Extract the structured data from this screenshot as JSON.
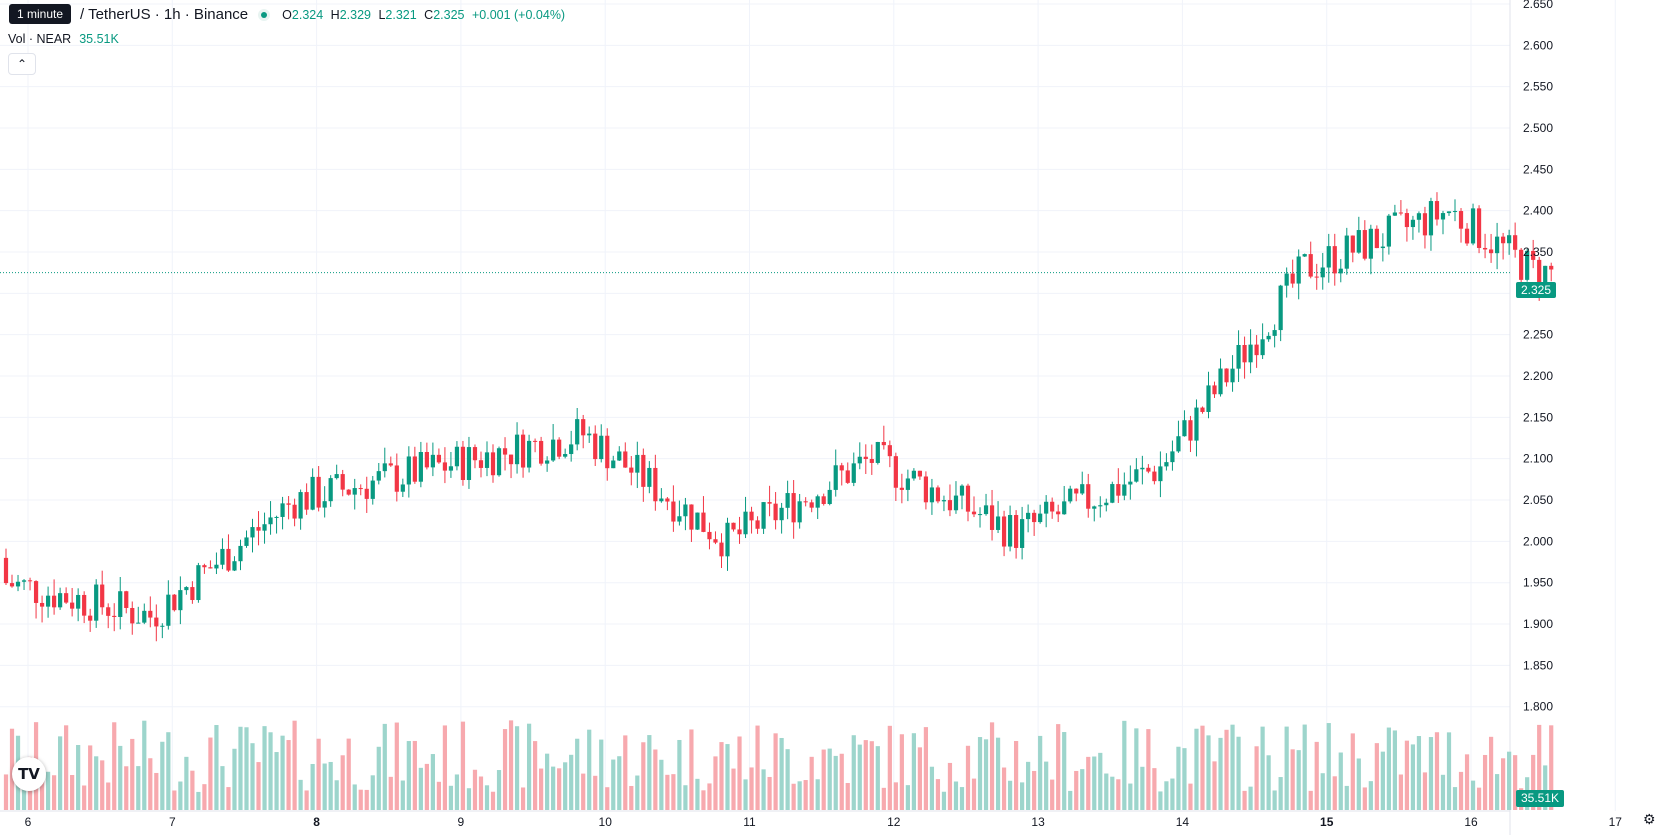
{
  "tooltip": "1 minute",
  "header": {
    "symbol": "/ TetherUS · 1h · Binance",
    "open_label": "O",
    "open": "2.324",
    "high_label": "H",
    "high": "2.329",
    "low_label": "L",
    "low": "2.321",
    "close_label": "C",
    "close": "2.325",
    "change": "+0.001 (+0.04%)"
  },
  "volume_legend": {
    "label": "Vol · NEAR",
    "value": "35.51K"
  },
  "collapse_icon": "chevron-up-icon",
  "last_price": "2.325",
  "last_volume": "35.51K",
  "logo": "TV",
  "colors": {
    "up": "#089981",
    "down": "#F23645",
    "up_vol": "#9dd5cc",
    "down_vol": "#f7a9ae",
    "grid": "#f0f3fa"
  },
  "chart_data": {
    "type": "candlestick",
    "y_ticks": [
      "2.650",
      "2.600",
      "2.550",
      "2.500",
      "2.450",
      "2.400",
      "2.350",
      "2.300",
      "2.250",
      "2.200",
      "2.150",
      "2.100",
      "2.050",
      "2.000",
      "1.950",
      "1.900",
      "1.850",
      "1.800"
    ],
    "x_ticks": [
      {
        "label": "6",
        "bold": false
      },
      {
        "label": "7",
        "bold": false
      },
      {
        "label": "8",
        "bold": true
      },
      {
        "label": "9",
        "bold": false
      },
      {
        "label": "10",
        "bold": false
      },
      {
        "label": "11",
        "bold": false
      },
      {
        "label": "12",
        "bold": false
      },
      {
        "label": "13",
        "bold": false
      },
      {
        "label": "14",
        "bold": false
      },
      {
        "label": "15",
        "bold": true
      },
      {
        "label": "16",
        "bold": false
      },
      {
        "label": "17",
        "bold": false
      }
    ],
    "timeframe": "1h",
    "approx_closes": [
      {
        "day": "6",
        "close": 1.95
      },
      {
        "day": "7",
        "close": 1.91
      },
      {
        "day": "8",
        "close": 2.05
      },
      {
        "day": "9",
        "close": 2.09
      },
      {
        "day": "10",
        "close": 2.13
      },
      {
        "day": "11",
        "close": 2.0
      },
      {
        "day": "12",
        "close": 2.1
      },
      {
        "day": "13",
        "close": 2.01
      },
      {
        "day": "14",
        "close": 2.09
      },
      {
        "day": "15",
        "close": 2.33
      },
      {
        "day": "16",
        "close": 2.4
      },
      {
        "day": "16.6",
        "close": 2.325
      }
    ]
  }
}
